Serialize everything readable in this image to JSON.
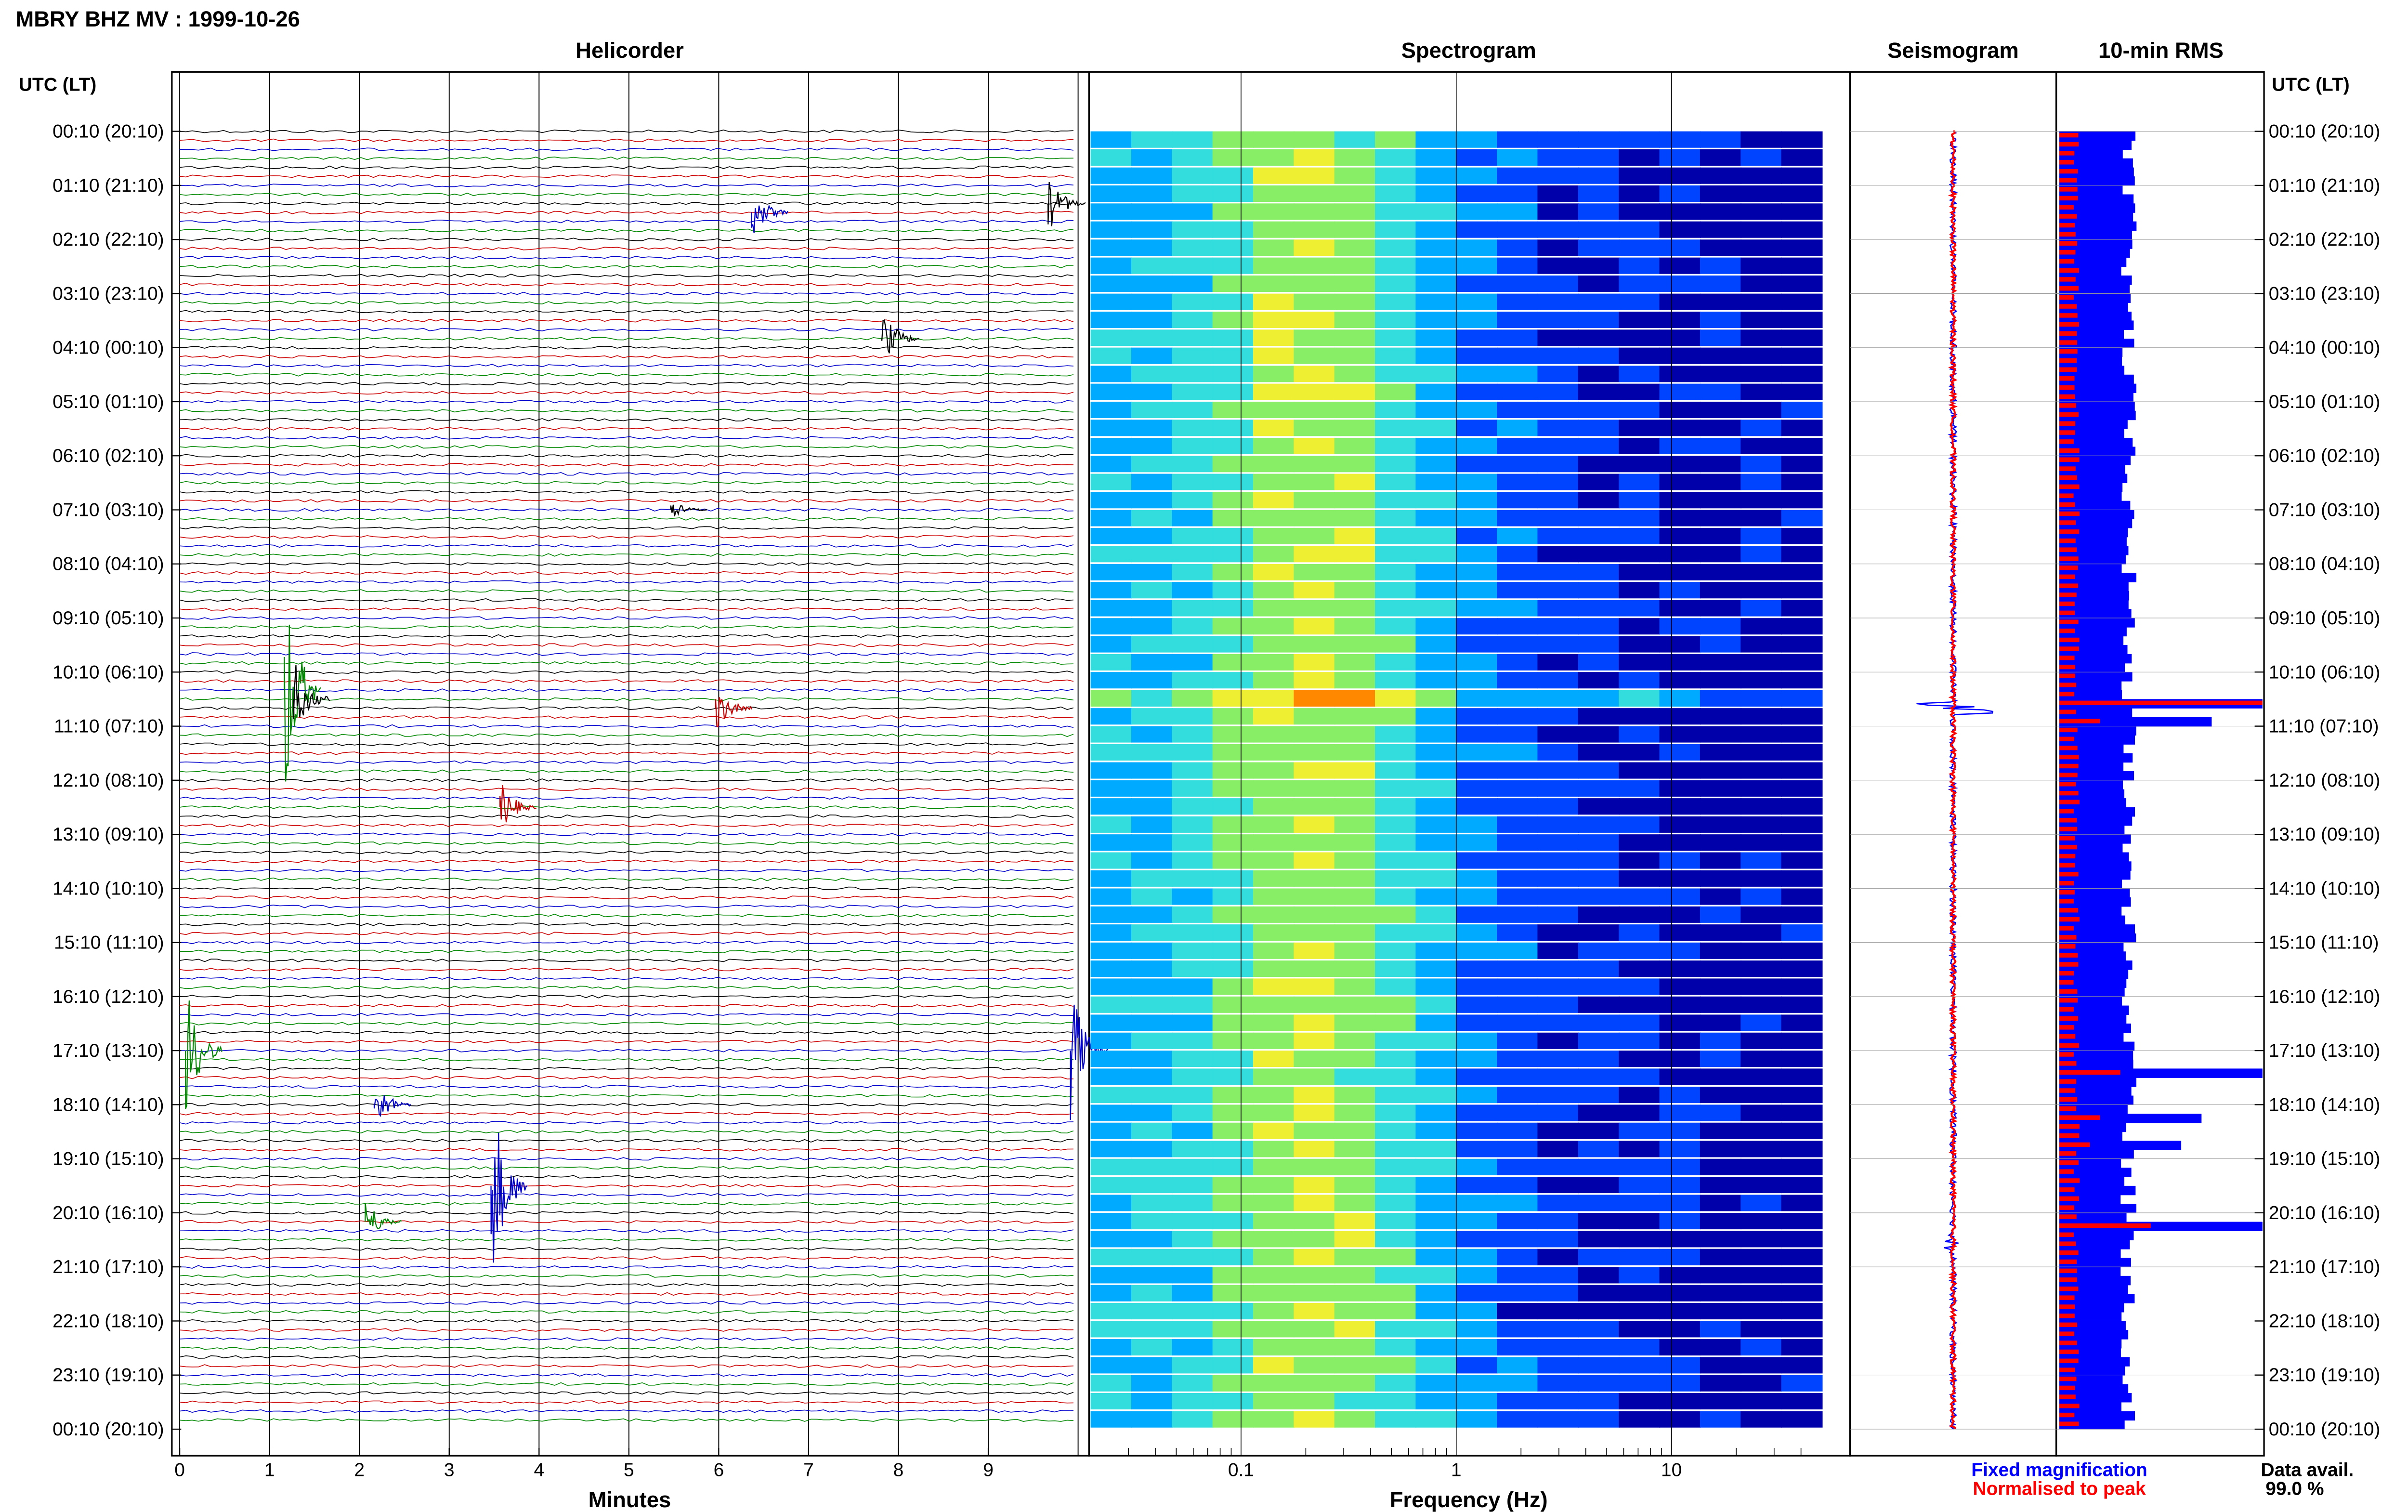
{
  "page": {
    "title": "MBRY BHZ MV : 1999-10-26"
  },
  "chart_data": [
    {
      "type": "line",
      "panel": "helicorder",
      "title": "Helicorder",
      "xlabel": "Minutes",
      "ylabel": "UTC (LT)",
      "xlim": [
        0,
        10
      ],
      "xticks": [
        "0",
        "1",
        "2",
        "3",
        "4",
        "5",
        "6",
        "7",
        "8",
        "9"
      ],
      "yticks_left": [
        "00:10 (20:10)",
        "01:10 (21:10)",
        "02:10 (22:10)",
        "03:10 (23:10)",
        "04:10 (00:10)",
        "05:10 (01:10)",
        "06:10 (02:10)",
        "07:10 (03:10)",
        "08:10 (04:10)",
        "09:10 (05:10)",
        "10:10 (06:10)",
        "11:10 (07:10)",
        "12:10 (08:10)",
        "13:10 (09:10)",
        "14:10 (10:10)",
        "15:10 (11:10)",
        "16:10 (12:10)",
        "17:10 (13:10)",
        "18:10 (14:10)",
        "19:10 (15:10)",
        "20:10 (16:10)",
        "21:10 (17:10)",
        "22:10 (18:10)",
        "23:10 (19:10)",
        "00:10 (20:10)"
      ],
      "trace_colors": [
        "#000000",
        "#cc0000",
        "#0000cc",
        "#008800"
      ],
      "grid": true,
      "events": [
        {
          "row": 8,
          "minute": 9.7,
          "amp": 0.9,
          "color": "#000000"
        },
        {
          "row": 9,
          "minute": 6.4,
          "amp": 0.8,
          "color": "#0000cc"
        },
        {
          "row": 23,
          "minute": 7.85,
          "amp": 0.9,
          "color": "#000000"
        },
        {
          "row": 42,
          "minute": 5.5,
          "amp": 0.3,
          "color": "#000000"
        },
        {
          "row": 62,
          "minute": 1.2,
          "amp": 3.5,
          "color": "#008800"
        },
        {
          "row": 63,
          "minute": 1.3,
          "amp": 1.2,
          "color": "#000000"
        },
        {
          "row": 64,
          "minute": 6.0,
          "amp": 0.7,
          "color": "#cc0000"
        },
        {
          "row": 75,
          "minute": 3.6,
          "amp": 0.8,
          "color": "#cc0000"
        },
        {
          "row": 102,
          "minute": 0.1,
          "amp": 2.0,
          "color": "#008800"
        },
        {
          "row": 102,
          "minute": 9.95,
          "amp": 2.0,
          "color": "#0000cc"
        },
        {
          "row": 108,
          "minute": 2.2,
          "amp": 0.8,
          "color": "#0000cc"
        },
        {
          "row": 117,
          "minute": 3.5,
          "amp": 3.0,
          "color": "#0000cc"
        },
        {
          "row": 121,
          "minute": 2.1,
          "amp": 0.7,
          "color": "#008800"
        }
      ]
    },
    {
      "type": "heatmap",
      "panel": "spectrogram",
      "title": "Spectrogram",
      "xlabel": "Frequency (Hz)",
      "xscale": "log",
      "xlim": [
        0.02,
        50
      ],
      "xticks": [
        "0.1",
        "1",
        "10"
      ],
      "colormap": [
        "#0000aa",
        "#0044ff",
        "#00aaff",
        "#33dddd",
        "#88ee66",
        "#eeee33",
        "#ff8800",
        "#cc0000"
      ]
    },
    {
      "type": "line",
      "panel": "seismogram",
      "title": "Seismogram",
      "series": [
        {
          "name": "Fixed magnification",
          "color": "#0000ff"
        },
        {
          "name": "Normalised to peak",
          "color": "#ff0000"
        }
      ]
    },
    {
      "type": "bar",
      "panel": "rms",
      "title": "10-min RMS",
      "ylabel": "UTC (LT)",
      "yticks_right": [
        "00:10 (20:10)",
        "01:10 (21:10)",
        "02:10 (22:10)",
        "03:10 (23:10)",
        "04:10 (00:10)",
        "05:10 (01:10)",
        "06:10 (02:10)",
        "07:10 (03:10)",
        "08:10 (04:10)",
        "09:10 (05:10)",
        "10:10 (06:10)",
        "11:10 (07:10)",
        "12:10 (08:10)",
        "13:10 (09:10)",
        "14:10 (10:10)",
        "15:10 (11:10)",
        "16:10 (12:10)",
        "17:10 (13:10)",
        "18:10 (14:10)",
        "19:10 (15:10)",
        "20:10 (16:10)",
        "21:10 (17:10)",
        "22:10 (18:10)",
        "23:10 (19:10)",
        "00:10 (20:10)"
      ],
      "series": [
        {
          "name": "Fixed magnification",
          "color": "#0000ff"
        },
        {
          "name": "Normalised to peak",
          "color": "#ff0000"
        }
      ],
      "spikes": [
        {
          "row": 63,
          "blue": 1.0,
          "red": 1.0
        },
        {
          "row": 65,
          "blue": 0.75,
          "red": 0.2
        },
        {
          "row": 104,
          "blue": 1.0,
          "red": 0.3
        },
        {
          "row": 109,
          "blue": 0.7,
          "red": 0.2
        },
        {
          "row": 112,
          "blue": 0.6,
          "red": 0.15
        },
        {
          "row": 121,
          "blue": 1.0,
          "red": 0.45
        }
      ]
    }
  ],
  "legend": {
    "fixed": "Fixed magnification",
    "normalised": "Normalised to peak",
    "fixed_color": "#0000ff",
    "normalised_color": "#ff0000"
  },
  "availability": {
    "label": "Data avail.",
    "value": "99.0 %"
  }
}
